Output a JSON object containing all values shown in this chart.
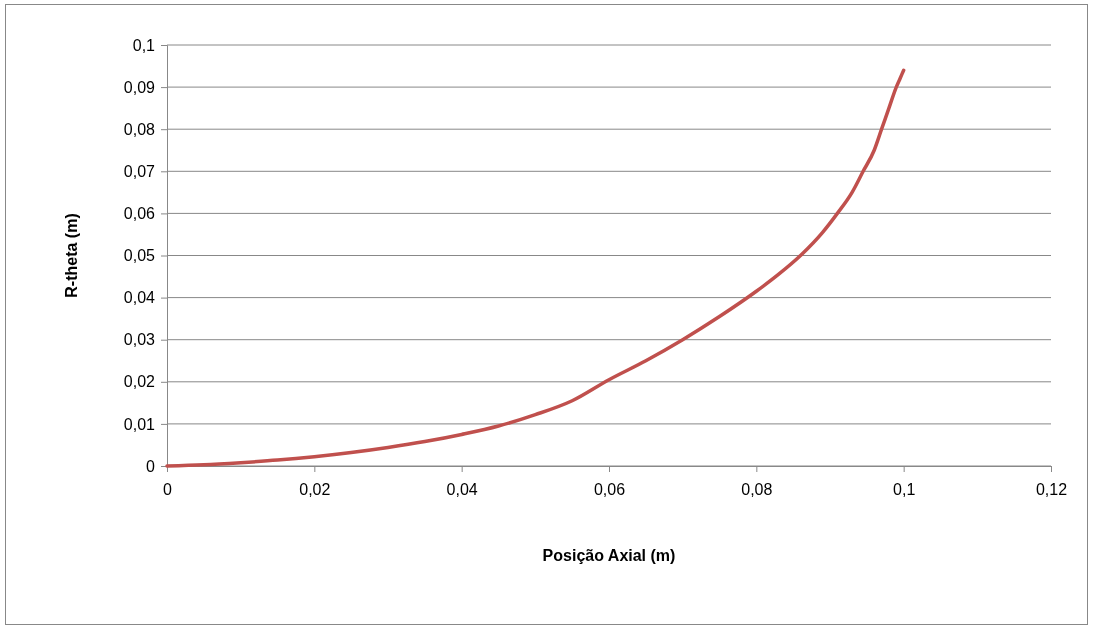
{
  "chart_data": {
    "type": "line",
    "xlabel": "Posição Axial (m)",
    "ylabel": "R-theta (m)",
    "series": [
      {
        "color": "#c0504d",
        "x": [
          0,
          0.005,
          0.01,
          0.015,
          0.02,
          0.025,
          0.03,
          0.035,
          0.04,
          0.045,
          0.05,
          0.055,
          0.06,
          0.065,
          0.07,
          0.075,
          0.08,
          0.083,
          0.086,
          0.089,
          0.091,
          0.093,
          0.0945,
          0.096,
          0.097,
          0.098,
          0.099,
          0.0995,
          0.1
        ],
        "values": [
          0,
          0.0003,
          0.0008,
          0.0014,
          0.0022,
          0.0032,
          0.0044,
          0.0058,
          0.0075,
          0.0095,
          0.0122,
          0.0155,
          0.0205,
          0.025,
          0.03,
          0.0355,
          0.0415,
          0.0455,
          0.05,
          0.0555,
          0.06,
          0.065,
          0.07,
          0.075,
          0.08,
          0.085,
          0.09,
          0.092,
          0.094
        ]
      }
    ],
    "xlim": [
      0,
      0.12
    ],
    "ylim": [
      0,
      0.1
    ],
    "xticks": [
      0,
      {
        "value": 0.02,
        "label": "0,02"
      },
      {
        "value": 0.04,
        "label": "0,04"
      },
      {
        "value": 0.06,
        "label": "0,06"
      },
      {
        "value": 0.08,
        "label": "0,08"
      },
      {
        "value": 0.1,
        "label": "0,1"
      },
      {
        "value": 0.12,
        "label": "0,12"
      }
    ],
    "yticks": [
      0,
      {
        "value": 0.01,
        "label": "0,01"
      },
      {
        "value": 0.02,
        "label": "0,02"
      },
      {
        "value": 0.03,
        "label": "0,03"
      },
      {
        "value": 0.04,
        "label": "0,04"
      },
      {
        "value": 0.05,
        "label": "0,05"
      },
      {
        "value": 0.06,
        "label": "0,06"
      },
      {
        "value": 0.07,
        "label": "0,07"
      },
      {
        "value": 0.08,
        "label": "0,08"
      },
      {
        "value": 0.09,
        "label": "0,09"
      },
      {
        "value": 0.1,
        "label": "0,1"
      }
    ],
    "grid": "y",
    "marker": "none",
    "line_style": "solid"
  }
}
